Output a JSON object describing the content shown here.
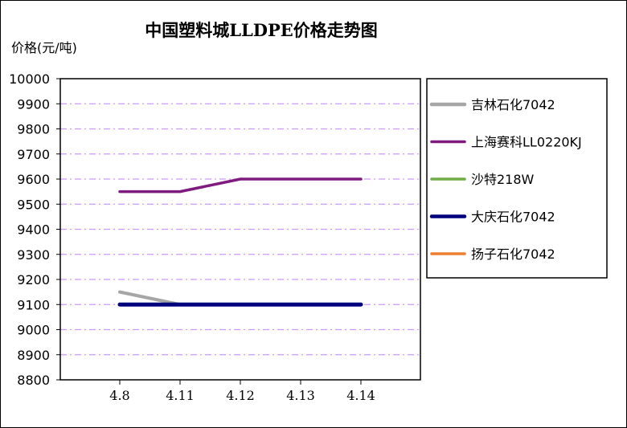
{
  "chart_data": {
    "type": "line",
    "title": "中国塑料城LLDPE价格走势图",
    "ylabel": "价格(元/吨)",
    "xlabel": "",
    "categories": [
      "4.8",
      "4.11",
      "4.12",
      "4.13",
      "4.14"
    ],
    "ylim": [
      8800,
      10000
    ],
    "yticks": [
      10000,
      9900,
      9800,
      9700,
      9600,
      9500,
      9400,
      9300,
      9200,
      9100,
      9000,
      8900,
      8800
    ],
    "grid": true,
    "legend_position": "right",
    "series": [
      {
        "name": "吉林石化7042",
        "color": "#a6a6a6",
        "values": [
          9150,
          9100,
          9100,
          9100,
          9100
        ]
      },
      {
        "name": "上海赛科LL0220KJ",
        "color": "#7f1a7f",
        "values": [
          9550,
          9550,
          9600,
          9600,
          9600
        ]
      },
      {
        "name": "沙特218W",
        "color": "#70ad47",
        "values": [
          null,
          null,
          null,
          null,
          null
        ]
      },
      {
        "name": "大庆石化7042",
        "color": "#00007f",
        "values": [
          9100,
          9100,
          9100,
          9100,
          9100
        ]
      },
      {
        "name": "扬子石化7042",
        "color": "#ed7d31",
        "values": [
          null,
          null,
          null,
          null,
          null
        ]
      }
    ]
  }
}
